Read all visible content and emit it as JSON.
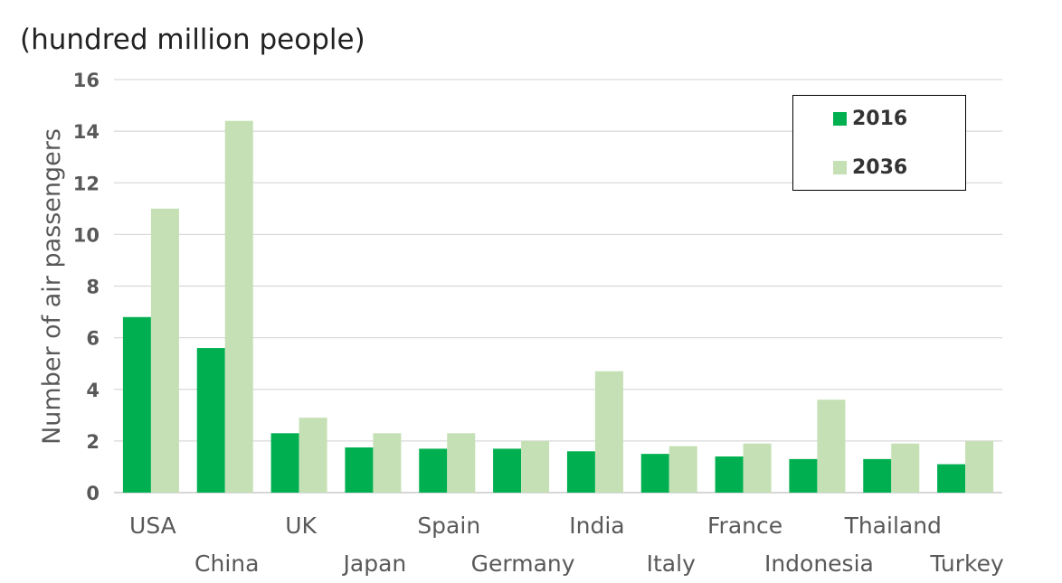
{
  "chart_data": {
    "type": "bar",
    "unit_label": "(hundred million people)",
    "ylabel": "Number of air passengers",
    "xlabel": "",
    "ylim": [
      0,
      16
    ],
    "yticks": [
      0,
      2,
      4,
      6,
      8,
      10,
      12,
      14,
      16
    ],
    "grid": true,
    "legend_position": "top-right",
    "categories": [
      "USA",
      "China",
      "UK",
      "Japan",
      "Spain",
      "Germany",
      "India",
      "Italy",
      "France",
      "Indonesia",
      "Thailand",
      "Turkey"
    ],
    "series": [
      {
        "name": "2016",
        "color": "#00b050",
        "values": [
          6.8,
          5.6,
          2.3,
          1.75,
          1.7,
          1.7,
          1.6,
          1.5,
          1.4,
          1.3,
          1.3,
          1.1
        ]
      },
      {
        "name": "2036",
        "color": "#c5e0b4",
        "values": [
          11.0,
          14.4,
          2.9,
          2.3,
          2.3,
          2.0,
          4.7,
          1.8,
          1.9,
          3.6,
          1.9,
          2.0
        ]
      }
    ]
  }
}
